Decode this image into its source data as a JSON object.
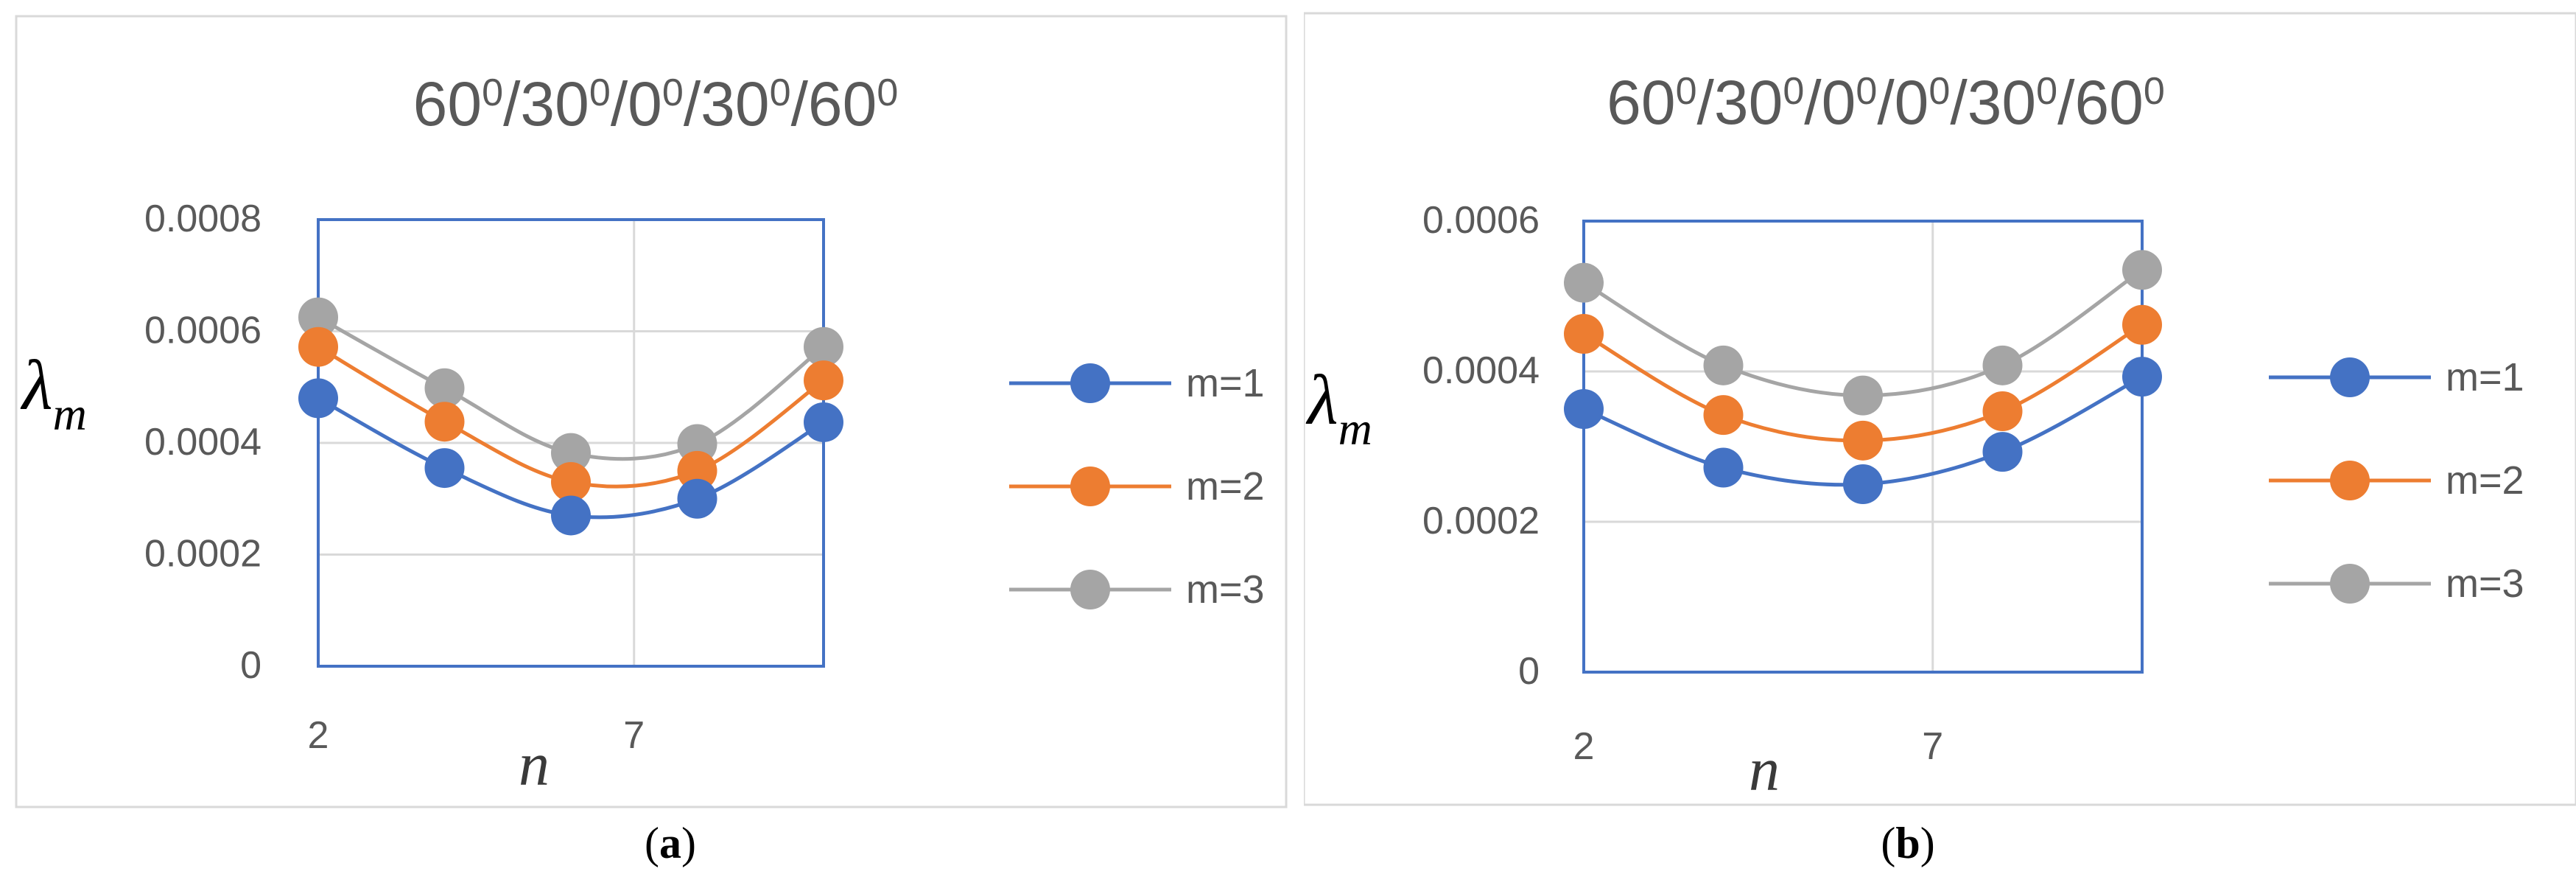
{
  "charts": [
    {
      "sub_label": "a",
      "chart_data": {
        "type": "line",
        "title": "60⁰/30⁰/0⁰/30⁰/60⁰",
        "xlabel": "n",
        "ylabel": "λm",
        "x": [
          2,
          4,
          6,
          8,
          10
        ],
        "xlim": [
          2,
          10
        ],
        "xticks": [
          2,
          7
        ],
        "ylim": [
          0,
          0.0008
        ],
        "yticks": [
          "0",
          "0.0002",
          "0.0004",
          "0.0006",
          "0.0008"
        ],
        "grid": true,
        "legend": "right",
        "series": [
          {
            "name": "m=1",
            "color": "#4472C4",
            "values": [
              0.00048,
              0.000355,
              0.00027,
              0.0003,
              0.000437
            ]
          },
          {
            "name": "m=2",
            "color": "#ED7D31",
            "values": [
              0.000572,
              0.000438,
              0.00033,
              0.00035,
              0.000512
            ]
          },
          {
            "name": "m=3",
            "color": "#A5A5A5",
            "values": [
              0.000625,
              0.000498,
              0.000382,
              0.000398,
              0.000572
            ]
          }
        ]
      }
    },
    {
      "sub_label": "b",
      "chart_data": {
        "type": "line",
        "title": "60⁰/30⁰/0⁰/0⁰/30⁰/60⁰",
        "xlabel": "n",
        "ylabel": "λm",
        "x": [
          2,
          4,
          6,
          8,
          10
        ],
        "xlim": [
          2,
          10
        ],
        "xticks": [
          2,
          7
        ],
        "ylim": [
          0,
          0.0006
        ],
        "yticks": [
          "0",
          "0.0002",
          "0.0004",
          "0.0006"
        ],
        "grid": true,
        "legend": "right",
        "series": [
          {
            "name": "m=1",
            "color": "#4472C4",
            "values": [
              0.00035,
              0.000272,
              0.00025,
              0.000293,
              0.000393
            ]
          },
          {
            "name": "m=2",
            "color": "#ED7D31",
            "values": [
              0.00045,
              0.000342,
              0.000308,
              0.000347,
              0.000462
            ]
          },
          {
            "name": "m=3",
            "color": "#A5A5A5",
            "values": [
              0.000518,
              0.000408,
              0.000368,
              0.000408,
              0.000535
            ]
          }
        ]
      }
    }
  ]
}
